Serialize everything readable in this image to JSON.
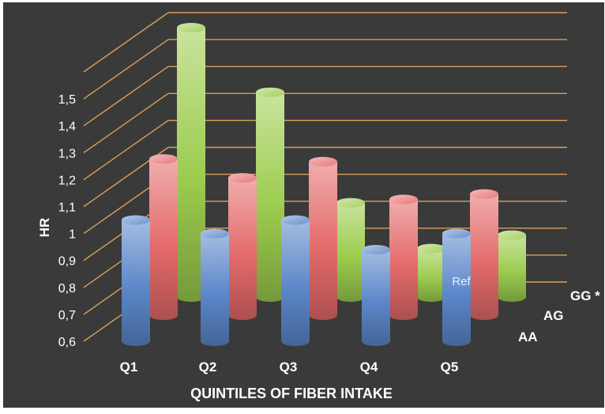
{
  "chart_data": {
    "type": "bar",
    "variant": "3d-cylinder",
    "title": "",
    "xlabel": "QUINTILES OF FIBER INTAKE",
    "ylabel": "HR",
    "categories": [
      "Q1",
      "Q2",
      "Q3",
      "Q4",
      "Q5"
    ],
    "ylim": [
      0.6,
      1.6
    ],
    "yticks": [
      "0,6",
      "0,7",
      "0,8",
      "0,9",
      "1",
      "1,1",
      "1,2",
      "1,3",
      "1,4",
      "1,5"
    ],
    "grid": true,
    "series": [
      {
        "name": "AA",
        "values": [
          1.05,
          1.0,
          1.05,
          0.94,
          1.0
        ]
      },
      {
        "name": "AG",
        "values": [
          1.18,
          1.11,
          1.17,
          1.03,
          1.05
        ]
      },
      {
        "name": "GG *",
        "values": [
          1.6,
          1.36,
          0.95,
          0.78,
          0.83
        ]
      }
    ],
    "annotations": [
      {
        "text": "Ref",
        "category": "Q5",
        "series": "AA"
      }
    ],
    "colors": {
      "background": "#3a3a3a",
      "gridline": "#d9a05a",
      "text": "#ffffff",
      "AA": "#5b86c8",
      "AG": "#e46a6a",
      "GG": "#9ccc4e"
    }
  }
}
